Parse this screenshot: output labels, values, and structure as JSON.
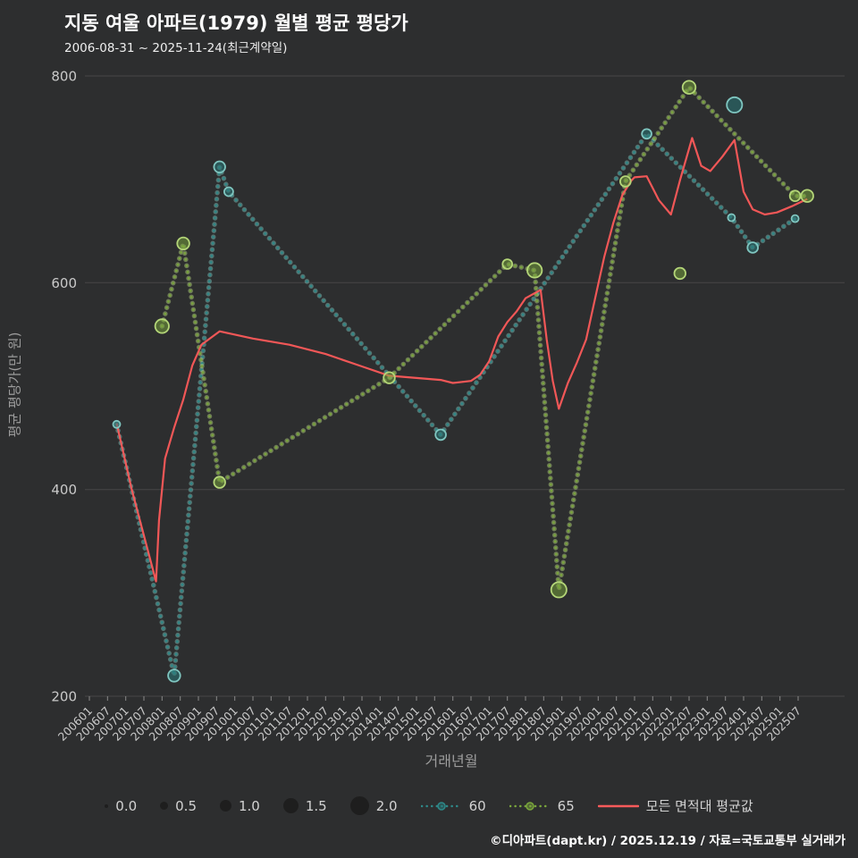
{
  "title": "지동 여울 아파트(1979) 월별 평균 평당가",
  "subtitle": "2006-08-31 ~ 2025-11-24(최근계약일)",
  "footer": "©디아파트(dapt.kr) / 2025.12.19 / 자료=국토교통부 실거래가",
  "colors": {
    "bg": "#2d2e2f",
    "grid": "#5c5c5c",
    "tick_text": "#c9c9c9",
    "axis_title": "#9c9c9c",
    "title_text": "#ffffff",
    "subtitle_text": "#eeeeee",
    "legend_text": "#d2d2d2",
    "footer_text": "#ffffff",
    "legend_bubble": "#1e1e1e"
  },
  "chart_data": {
    "type": "line",
    "title": "지동 여울 아파트(1979) 월별 평균 평당가",
    "xlabel": "거래년월",
    "ylabel": "평균 평당가(만 원)",
    "ylim": [
      200,
      800
    ],
    "yticks": [
      200,
      400,
      600,
      800
    ],
    "grid": "horizontal-only",
    "legend_position": "bottom",
    "xticks": [
      "200601",
      "200607",
      "200701",
      "200707",
      "200801",
      "200807",
      "200901",
      "200907",
      "201001",
      "201007",
      "201101",
      "201107",
      "201201",
      "201207",
      "201301",
      "201307",
      "201401",
      "201407",
      "201501",
      "201507",
      "201601",
      "201607",
      "201701",
      "201707",
      "201801",
      "201807",
      "201901",
      "201907",
      "202001",
      "202007",
      "202101",
      "202107",
      "202201",
      "202207",
      "202301",
      "202307",
      "202401",
      "202407",
      "202501",
      "202507"
    ],
    "size_legend": [
      "0.0",
      "0.5",
      "1.0",
      "1.5",
      "2.0"
    ],
    "series": [
      {
        "name": "60",
        "style": "dots",
        "color": "#2e8989",
        "halo": "#83c7c2",
        "fill": "rgba(40,120,120,0.55)",
        "ring": "#7fc6c0",
        "points": [
          {
            "x": "200610",
            "y": 463,
            "s": 0.4
          },
          {
            "x": "200805",
            "y": 220,
            "s": 1.0
          },
          {
            "x": "200908",
            "y": 712,
            "s": 0.9
          },
          {
            "x": "200911",
            "y": 688,
            "s": 0.6
          },
          {
            "x": "201509",
            "y": 453,
            "s": 0.8
          },
          {
            "x": "202105",
            "y": 744,
            "s": 0.7
          },
          {
            "x": "202309",
            "y": 663,
            "s": 0.4
          },
          {
            "x": "202404",
            "y": 634,
            "s": 0.8
          },
          {
            "x": "202506",
            "y": 662,
            "s": 0.4
          }
        ],
        "outliers": [
          {
            "x": "202310",
            "y": 772,
            "s": 1.4
          }
        ]
      },
      {
        "name": "65",
        "style": "dots",
        "color": "#7aa63c",
        "halo": "#bcda86",
        "fill": "rgba(122,166,60,0.5)",
        "ring": "#b4d678",
        "points": [
          {
            "x": "200801",
            "y": 558,
            "s": 1.2
          },
          {
            "x": "200808",
            "y": 638,
            "s": 1.0
          },
          {
            "x": "200908",
            "y": 407,
            "s": 0.9
          },
          {
            "x": "201404",
            "y": 508,
            "s": 0.9
          },
          {
            "x": "201707",
            "y": 618,
            "s": 0.7
          },
          {
            "x": "201804",
            "y": 612,
            "s": 1.3
          },
          {
            "x": "201812",
            "y": 303,
            "s": 1.4
          },
          {
            "x": "202010",
            "y": 698,
            "s": 0.8
          },
          {
            "x": "202207",
            "y": 789,
            "s": 1.1
          },
          {
            "x": "202506",
            "y": 684,
            "s": 0.8
          },
          {
            "x": "202510",
            "y": 684,
            "s": 1.0
          }
        ],
        "outliers": [
          {
            "x": "202204",
            "y": 609,
            "s": 0.9
          }
        ]
      },
      {
        "name": "모든 면적대 평균값",
        "style": "solid",
        "color": "#fc5a5a",
        "points": [
          {
            "x": "200610",
            "y": 464
          },
          {
            "x": "200703",
            "y": 400
          },
          {
            "x": "200711",
            "y": 311
          },
          {
            "x": "200712",
            "y": 370
          },
          {
            "x": "200802",
            "y": 430
          },
          {
            "x": "200805",
            "y": 460
          },
          {
            "x": "200808",
            "y": 487
          },
          {
            "x": "200811",
            "y": 520
          },
          {
            "x": "200902",
            "y": 540
          },
          {
            "x": "200908",
            "y": 553
          },
          {
            "x": "201007",
            "y": 546
          },
          {
            "x": "201107",
            "y": 540
          },
          {
            "x": "201207",
            "y": 531
          },
          {
            "x": "201307",
            "y": 519
          },
          {
            "x": "201404",
            "y": 510
          },
          {
            "x": "201509",
            "y": 506
          },
          {
            "x": "201601",
            "y": 503
          },
          {
            "x": "201607",
            "y": 505
          },
          {
            "x": "201610",
            "y": 511
          },
          {
            "x": "201701",
            "y": 524
          },
          {
            "x": "201704",
            "y": 548
          },
          {
            "x": "201707",
            "y": 562
          },
          {
            "x": "201710",
            "y": 572
          },
          {
            "x": "201801",
            "y": 585
          },
          {
            "x": "201806",
            "y": 593
          },
          {
            "x": "201808",
            "y": 545
          },
          {
            "x": "201810",
            "y": 505
          },
          {
            "x": "201812",
            "y": 478
          },
          {
            "x": "201903",
            "y": 503
          },
          {
            "x": "201906",
            "y": 523
          },
          {
            "x": "201909",
            "y": 545
          },
          {
            "x": "201912",
            "y": 585
          },
          {
            "x": "202003",
            "y": 625
          },
          {
            "x": "202006",
            "y": 658
          },
          {
            "x": "202009",
            "y": 685
          },
          {
            "x": "202012",
            "y": 699
          },
          {
            "x": "202101",
            "y": 702
          },
          {
            "x": "202105",
            "y": 703
          },
          {
            "x": "202109",
            "y": 680
          },
          {
            "x": "202201",
            "y": 666
          },
          {
            "x": "202204",
            "y": 699
          },
          {
            "x": "202208",
            "y": 740
          },
          {
            "x": "202211",
            "y": 713
          },
          {
            "x": "202302",
            "y": 708
          },
          {
            "x": "202306",
            "y": 722
          },
          {
            "x": "202310",
            "y": 738
          },
          {
            "x": "202401",
            "y": 688
          },
          {
            "x": "202404",
            "y": 671
          },
          {
            "x": "202408",
            "y": 666
          },
          {
            "x": "202412",
            "y": 668
          },
          {
            "x": "202505",
            "y": 674
          },
          {
            "x": "202510",
            "y": 681
          }
        ]
      }
    ]
  }
}
